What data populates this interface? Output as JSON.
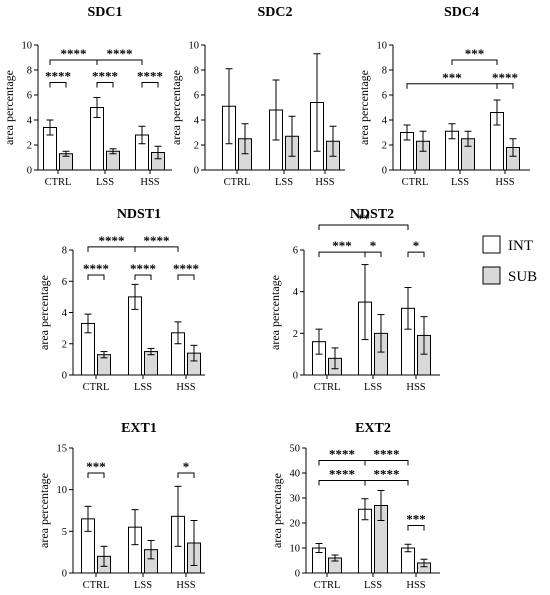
{
  "legend": {
    "items": [
      {
        "label": "INT",
        "color": "#ffffff"
      },
      {
        "label": "SUB",
        "color": "#d9d9d9"
      }
    ],
    "placement": "right"
  },
  "chart_data": [
    {
      "id": "sdc1",
      "type": "bar",
      "title": "SDC1",
      "ylabel": "area percentage",
      "ylim": [
        0,
        10
      ],
      "yticks": [
        0,
        2,
        4,
        6,
        8,
        10
      ],
      "categories": [
        "CTRL",
        "LSS",
        "HSS"
      ],
      "series": [
        {
          "name": "INT",
          "values": [
            3.4,
            5.0,
            2.8
          ],
          "errors": [
            0.6,
            0.8,
            0.7
          ]
        },
        {
          "name": "SUB",
          "values": [
            1.3,
            1.5,
            1.4
          ],
          "errors": [
            0.2,
            0.2,
            0.5
          ]
        }
      ],
      "significance": [
        {
          "from": [
            0,
            0
          ],
          "to": [
            0,
            1
          ],
          "level": 7.0,
          "label": "****"
        },
        {
          "from": [
            1,
            0
          ],
          "to": [
            1,
            1
          ],
          "level": 7.0,
          "label": "****"
        },
        {
          "from": [
            2,
            0
          ],
          "to": [
            2,
            1
          ],
          "level": 7.0,
          "label": "****"
        },
        {
          "from": [
            0,
            0
          ],
          "to": [
            1,
            0
          ],
          "level": 8.8,
          "label": "****"
        },
        {
          "from": [
            1,
            0
          ],
          "to": [
            2,
            0
          ],
          "level": 8.8,
          "label": "****"
        }
      ]
    },
    {
      "id": "sdc2",
      "type": "bar",
      "title": "SDC2",
      "ylabel": "area percentage",
      "ylim": [
        0,
        10
      ],
      "yticks": [
        0,
        2,
        4,
        6,
        8,
        10
      ],
      "categories": [
        "CTRL",
        "LSS",
        "HSS"
      ],
      "series": [
        {
          "name": "INT",
          "values": [
            5.1,
            4.8,
            5.4
          ],
          "errors": [
            3.0,
            2.4,
            3.9
          ]
        },
        {
          "name": "SUB",
          "values": [
            2.5,
            2.7,
            2.3
          ],
          "errors": [
            1.2,
            1.6,
            1.2
          ]
        }
      ],
      "significance": []
    },
    {
      "id": "sdc4",
      "type": "bar",
      "title": "SDC4",
      "ylabel": "area percentage",
      "ylim": [
        0,
        10
      ],
      "yticks": [
        0,
        2,
        4,
        6,
        8,
        10
      ],
      "categories": [
        "CTRL",
        "LSS",
        "HSS"
      ],
      "series": [
        {
          "name": "INT",
          "values": [
            3.0,
            3.1,
            4.6
          ],
          "errors": [
            0.6,
            0.6,
            1.0
          ]
        },
        {
          "name": "SUB",
          "values": [
            2.3,
            2.5,
            1.8
          ],
          "errors": [
            0.8,
            0.6,
            0.7
          ]
        }
      ],
      "significance": [
        {
          "from": [
            0,
            0
          ],
          "to": [
            2,
            0
          ],
          "level": 6.9,
          "label": "***"
        },
        {
          "from": [
            2,
            0
          ],
          "to": [
            2,
            1
          ],
          "level": 6.9,
          "label": "****"
        },
        {
          "from": [
            1,
            0
          ],
          "to": [
            2,
            0
          ],
          "level": 8.8,
          "label": "***"
        }
      ]
    },
    {
      "id": "ndst1",
      "type": "bar",
      "title": "NDST1",
      "ylabel": "area percentage",
      "ylim": [
        0,
        8
      ],
      "yticks": [
        0,
        2,
        4,
        6,
        8
      ],
      "categories": [
        "CTRL",
        "LSS",
        "HSS"
      ],
      "series": [
        {
          "name": "INT",
          "values": [
            3.3,
            5.0,
            2.7
          ],
          "errors": [
            0.6,
            0.8,
            0.7
          ]
        },
        {
          "name": "SUB",
          "values": [
            1.3,
            1.5,
            1.4
          ],
          "errors": [
            0.2,
            0.2,
            0.5
          ]
        }
      ],
      "significance": [
        {
          "from": [
            0,
            0
          ],
          "to": [
            0,
            1
          ],
          "level": 6.4,
          "label": "****"
        },
        {
          "from": [
            1,
            0
          ],
          "to": [
            1,
            1
          ],
          "level": 6.4,
          "label": "****"
        },
        {
          "from": [
            2,
            0
          ],
          "to": [
            2,
            1
          ],
          "level": 6.4,
          "label": "****"
        },
        {
          "from": [
            0,
            0
          ],
          "to": [
            1,
            0
          ],
          "level": 8.2,
          "label": "****"
        },
        {
          "from": [
            1,
            0
          ],
          "to": [
            2,
            0
          ],
          "level": 8.2,
          "label": "****"
        }
      ]
    },
    {
      "id": "ndst2",
      "type": "bar",
      "title": "NDST2",
      "ylabel": "area percentage",
      "ylim": [
        0,
        6
      ],
      "yticks": [
        0,
        2,
        4,
        6
      ],
      "categories": [
        "CTRL",
        "LSS",
        "HSS"
      ],
      "series": [
        {
          "name": "INT",
          "values": [
            1.6,
            3.5,
            3.2
          ],
          "errors": [
            0.6,
            1.8,
            1.0
          ]
        },
        {
          "name": "SUB",
          "values": [
            0.8,
            2.0,
            1.9
          ],
          "errors": [
            0.5,
            0.9,
            0.9
          ]
        }
      ],
      "significance": [
        {
          "from": [
            0,
            0
          ],
          "to": [
            1,
            0
          ],
          "level": 5.9,
          "label": "***"
        },
        {
          "from": [
            1,
            0
          ],
          "to": [
            1,
            1
          ],
          "level": 5.9,
          "label": "*"
        },
        {
          "from": [
            2,
            0
          ],
          "to": [
            2,
            1
          ],
          "level": 5.9,
          "label": "*"
        },
        {
          "from": [
            0,
            0
          ],
          "to": [
            2,
            0
          ],
          "level": 7.2,
          "label": "**"
        }
      ]
    },
    {
      "id": "ext1",
      "type": "bar",
      "title": "EXT1",
      "ylabel": "area percentage",
      "ylim": [
        0,
        15
      ],
      "yticks": [
        0,
        5,
        10,
        15
      ],
      "categories": [
        "CTRL",
        "LSS",
        "HSS"
      ],
      "series": [
        {
          "name": "INT",
          "values": [
            6.5,
            5.5,
            6.8
          ],
          "errors": [
            1.5,
            2.1,
            3.6
          ]
        },
        {
          "name": "SUB",
          "values": [
            2.0,
            2.8,
            3.6
          ],
          "errors": [
            1.2,
            1.1,
            2.7
          ]
        }
      ],
      "significance": [
        {
          "from": [
            0,
            0
          ],
          "to": [
            0,
            1
          ],
          "level": 12.0,
          "label": "***"
        },
        {
          "from": [
            2,
            0
          ],
          "to": [
            2,
            1
          ],
          "level": 12.0,
          "label": "*"
        }
      ]
    },
    {
      "id": "ext2",
      "type": "bar",
      "title": "EXT2",
      "ylabel": "area percentage",
      "ylim": [
        0,
        50
      ],
      "yticks": [
        0,
        10,
        20,
        30,
        40,
        50
      ],
      "categories": [
        "CTRL",
        "LSS",
        "HSS"
      ],
      "series": [
        {
          "name": "INT",
          "values": [
            10.0,
            25.5,
            10.0
          ],
          "errors": [
            1.8,
            4.2,
            1.5
          ]
        },
        {
          "name": "SUB",
          "values": [
            6.0,
            27.0,
            4.0
          ],
          "errors": [
            1.2,
            6.0,
            1.5
          ]
        }
      ],
      "significance": [
        {
          "from": [
            2,
            0
          ],
          "to": [
            2,
            1
          ],
          "level": 19.0,
          "label": "***"
        },
        {
          "from": [
            0,
            0
          ],
          "to": [
            1,
            0
          ],
          "level": 37.0,
          "label": "****"
        },
        {
          "from": [
            1,
            0
          ],
          "to": [
            2,
            0
          ],
          "level": 37.0,
          "label": "****"
        },
        {
          "from": [
            0,
            0
          ],
          "to": [
            1,
            0
          ],
          "level": 45.0,
          "label": "****"
        },
        {
          "from": [
            1,
            0
          ],
          "to": [
            2,
            0
          ],
          "level": 45.0,
          "label": "****"
        }
      ]
    }
  ]
}
